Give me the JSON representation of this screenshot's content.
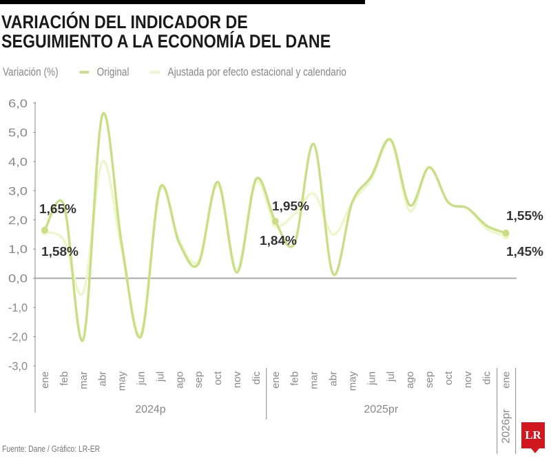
{
  "title_lines": [
    "VARIACIÓN DEL INDICADOR DE",
    "SEGUIMIENTO A LA ECONOMÍA DEL DANE"
  ],
  "source": "Fuente: Dane / Gráfico: LR-ER",
  "logo": "LR",
  "colors": {
    "original": "#c8df86",
    "adjusted": "#eef6cc",
    "axis": "#9a9a9a",
    "logo": "#d0181e"
  },
  "chart_data": {
    "type": "line",
    "ylabel": "Variación (%)",
    "ylim": [
      -3.0,
      6.0
    ],
    "yticks": [
      "6,0",
      "5,0",
      "4,0",
      "3,0",
      "2,0",
      "1,0",
      "0,0",
      "-1,0",
      "-2,0",
      "-3,0"
    ],
    "categories": [
      "ene",
      "feb",
      "mar",
      "abr",
      "may",
      "jun",
      "jul",
      "ago",
      "sep",
      "oct",
      "nov",
      "dic",
      "ene",
      "feb",
      "mar",
      "abr",
      "may",
      "jun",
      "jul",
      "ago",
      "sep",
      "oct",
      "nov",
      "dic",
      "ene"
    ],
    "groups": [
      {
        "label": "2024p",
        "count": 12
      },
      {
        "label": "2025pr",
        "count": 12
      },
      {
        "label": "2026pr",
        "count": 1
      }
    ],
    "grid": false,
    "legend_placement": "top",
    "series": [
      {
        "name": "Original",
        "values": [
          1.65,
          2.5,
          -2.1,
          5.6,
          1.2,
          -2.0,
          3.1,
          1.2,
          0.5,
          3.3,
          0.2,
          3.4,
          1.95,
          1.2,
          4.6,
          0.15,
          2.6,
          3.5,
          4.75,
          2.5,
          3.8,
          2.6,
          2.4,
          1.8,
          1.55
        ]
      },
      {
        "name": "Ajustada por efecto estacional y calendario",
        "values": [
          1.58,
          1.3,
          -0.5,
          4.0,
          1.0,
          -1.9,
          3.0,
          1.3,
          0.6,
          3.2,
          0.3,
          3.3,
          1.84,
          2.2,
          2.9,
          1.5,
          2.6,
          3.4,
          4.7,
          2.3,
          3.8,
          2.6,
          2.4,
          1.7,
          1.45
        ]
      }
    ],
    "annotations": [
      "1,65%",
      "1,58%",
      "1,95%",
      "1,84%",
      "1,55%",
      "1,45%"
    ]
  }
}
